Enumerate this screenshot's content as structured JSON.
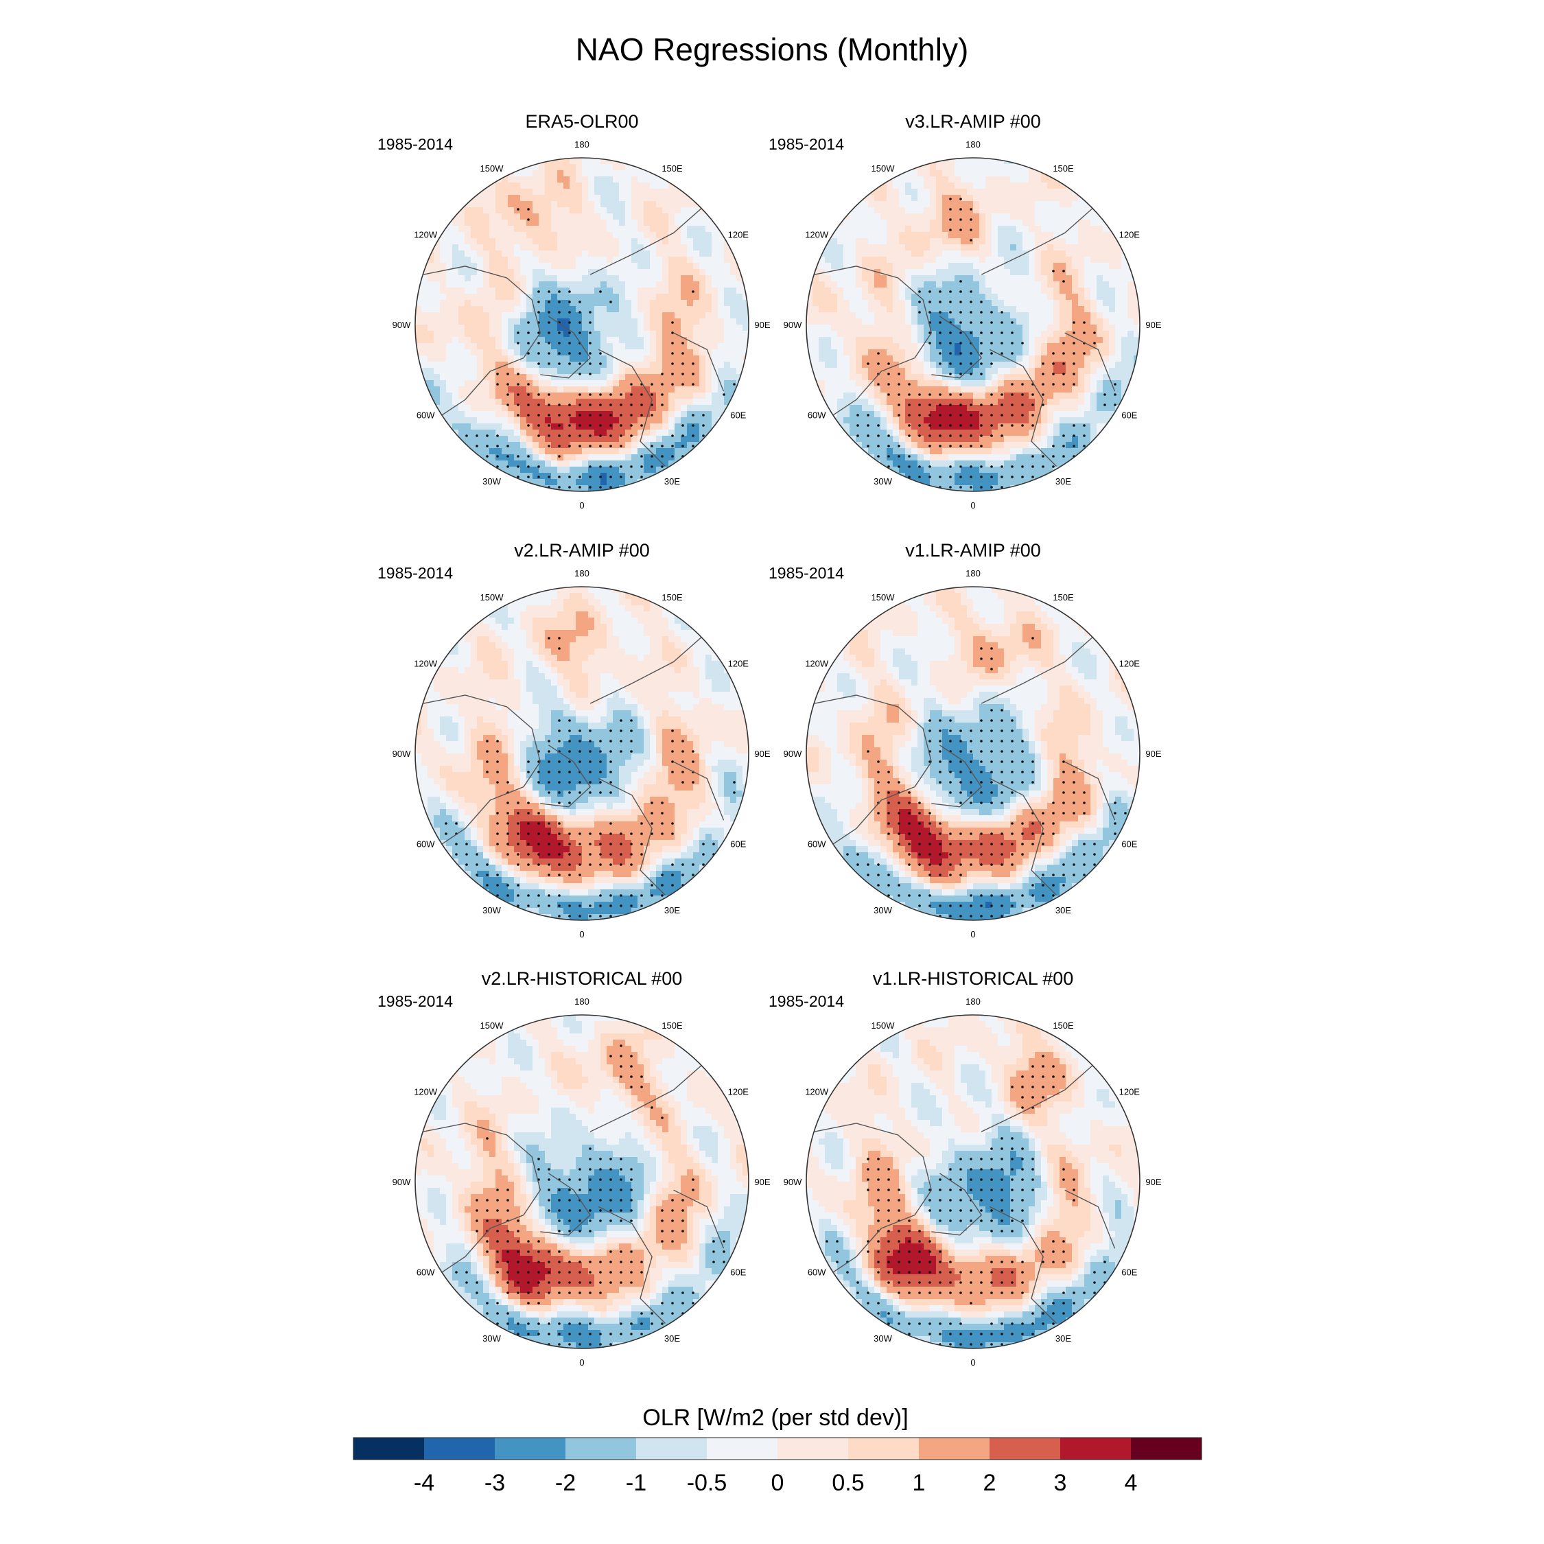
{
  "figure": {
    "title": "NAO Regressions (Monthly)"
  },
  "colors": {
    "palette": [
      "#053061",
      "#2166ac",
      "#4393c3",
      "#92c5de",
      "#d1e5f0",
      "#f0f4f8",
      "#fbe8e0",
      "#fddbc7",
      "#f4a582",
      "#d6604d",
      "#b2182b",
      "#67001f"
    ],
    "coast": "#555555",
    "frame": "#333333"
  },
  "panel_common": {
    "period": "1985-2014",
    "lon_labels": [
      "180",
      "150E",
      "120E",
      "90E",
      "60E",
      "30E",
      "0",
      "30W",
      "60W",
      "90W",
      "120W",
      "150W"
    ]
  },
  "panels": [
    {
      "title": "ERA5-OLR00"
    },
    {
      "title": "v3.LR-AMIP  #00"
    },
    {
      "title": "v2.LR-AMIP  #00"
    },
    {
      "title": "v1.LR-AMIP  #00"
    },
    {
      "title": "v2.LR-HISTORICAL  #00"
    },
    {
      "title": "v1.LR-HISTORICAL  #00"
    }
  ],
  "colorbar": {
    "label": "OLR [W/m2 (per std dev)]",
    "tick_labels": [
      "-4",
      "-3",
      "-2",
      "-1",
      "-0.5",
      "0",
      "0.5",
      "1",
      "2",
      "3",
      "4"
    ]
  }
}
